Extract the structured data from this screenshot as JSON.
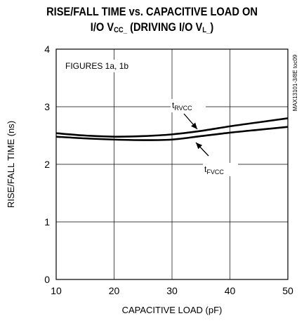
{
  "title_line1": "RISE/FALL TIME vs. CAPACITIVE LOAD ON",
  "title_line2_a": "I/O V",
  "title_line2_sub1": "CC_",
  "title_line2_b": " (DRIVING I/O V",
  "title_line2_sub2": "L_",
  "title_line2_c": ")",
  "side_note": "MAX13101-3/8E toc09",
  "chart_data": {
    "type": "line",
    "title": "RISE/FALL TIME vs. CAPACITIVE LOAD ON I/O VCC_ (DRIVING I/O VL_)",
    "xlabel": "CAPACITIVE LOAD (pF)",
    "ylabel": "RISE/FALL TIME (ns)",
    "xlim": [
      10,
      50
    ],
    "ylim": [
      0,
      4
    ],
    "xticks": [
      10,
      20,
      30,
      40,
      50
    ],
    "yticks": [
      0,
      1,
      2,
      3,
      4
    ],
    "grid": true,
    "annotation": "FIGURES 1a, 1b",
    "series": [
      {
        "name": "tRVCC",
        "label_main": "t",
        "label_sub": "RVCC",
        "x": [
          10,
          15,
          20,
          25,
          30,
          35,
          40,
          45,
          50
        ],
        "y": [
          2.54,
          2.5,
          2.48,
          2.49,
          2.52,
          2.58,
          2.66,
          2.73,
          2.8
        ]
      },
      {
        "name": "tFVCC",
        "label_main": "t",
        "label_sub": "FVCC",
        "x": [
          10,
          15,
          20,
          25,
          30,
          35,
          40,
          45,
          50
        ],
        "y": [
          2.48,
          2.45,
          2.43,
          2.42,
          2.43,
          2.49,
          2.55,
          2.6,
          2.65
        ]
      }
    ]
  }
}
